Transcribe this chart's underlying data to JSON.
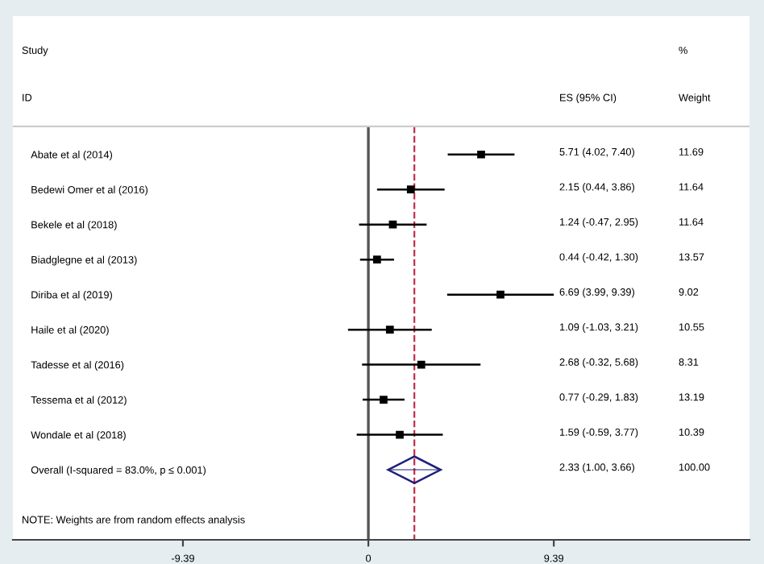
{
  "chart_data": {
    "type": "scatter",
    "orientation": "horizontal",
    "categories": [
      "Abate et al (2014)",
      "Bedewi Omer et al (2016)",
      "Bekele et al (2018)",
      "Biadglegne et al (2013)",
      "Diriba et al (2019)",
      "Haile et al (2020)",
      "Tadesse et al (2016)",
      "Tessema et al (2012)",
      "Wondale et al (2018)",
      "Overall (I-squared = 83.0%, p ≤ 0.001)"
    ],
    "series": [
      {
        "marker": "square",
        "color": "#000000",
        "values": [
          5.71,
          2.15,
          1.24,
          0.44,
          6.69,
          1.09,
          2.68,
          0.77,
          1.59,
          null
        ],
        "errors": [
          [
            4.02,
            7.4
          ],
          [
            0.44,
            3.86
          ],
          [
            -0.47,
            2.95
          ],
          [
            -0.42,
            1.3
          ],
          [
            3.99,
            9.39
          ],
          [
            -1.03,
            3.21
          ],
          [
            -0.32,
            5.68
          ],
          [
            -0.29,
            1.83
          ],
          [
            -0.59,
            3.77
          ],
          null
        ]
      },
      {
        "marker": "diamond",
        "color": "#1f1f7a",
        "values": [
          null,
          null,
          null,
          null,
          null,
          null,
          null,
          null,
          null,
          2.33
        ],
        "errors": [
          null,
          null,
          null,
          null,
          null,
          null,
          null,
          null,
          null,
          [
            1.0,
            3.66
          ]
        ]
      }
    ],
    "xlim": [
      -18.0,
      19.3
    ],
    "xticks": [
      -9.39,
      0,
      9.39
    ],
    "ref_lines": [
      {
        "axis": "x",
        "value": 0,
        "color": "#555555",
        "line_style": "solid"
      },
      {
        "axis": "x",
        "value": 2.33,
        "color": "#c0304a",
        "line_style": "dashed"
      }
    ],
    "annotations": [
      "Study",
      "ID",
      "ES (95% CI)",
      "%",
      "Weight",
      "NOTE: Weights are from random effects analysis",
      "5.71 (4.02, 7.40)",
      "2.15 (0.44, 3.86)",
      "1.24 (-0.47, 2.95)",
      "0.44 (-0.42, 1.30)",
      "6.69 (3.99, 9.39)",
      "1.09 (-1.03, 3.21)",
      "2.68 (-0.32, 5.68)",
      "0.77 (-0.29, 1.83)",
      "1.59 (-0.59, 3.77)",
      "2.33 (1.00, 3.66)",
      "11.69",
      "11.64",
      "11.64",
      "13.57",
      "9.02",
      "10.55",
      "8.31",
      "13.19",
      "10.39",
      "100.00"
    ],
    "grid": false,
    "legend": false
  }
}
